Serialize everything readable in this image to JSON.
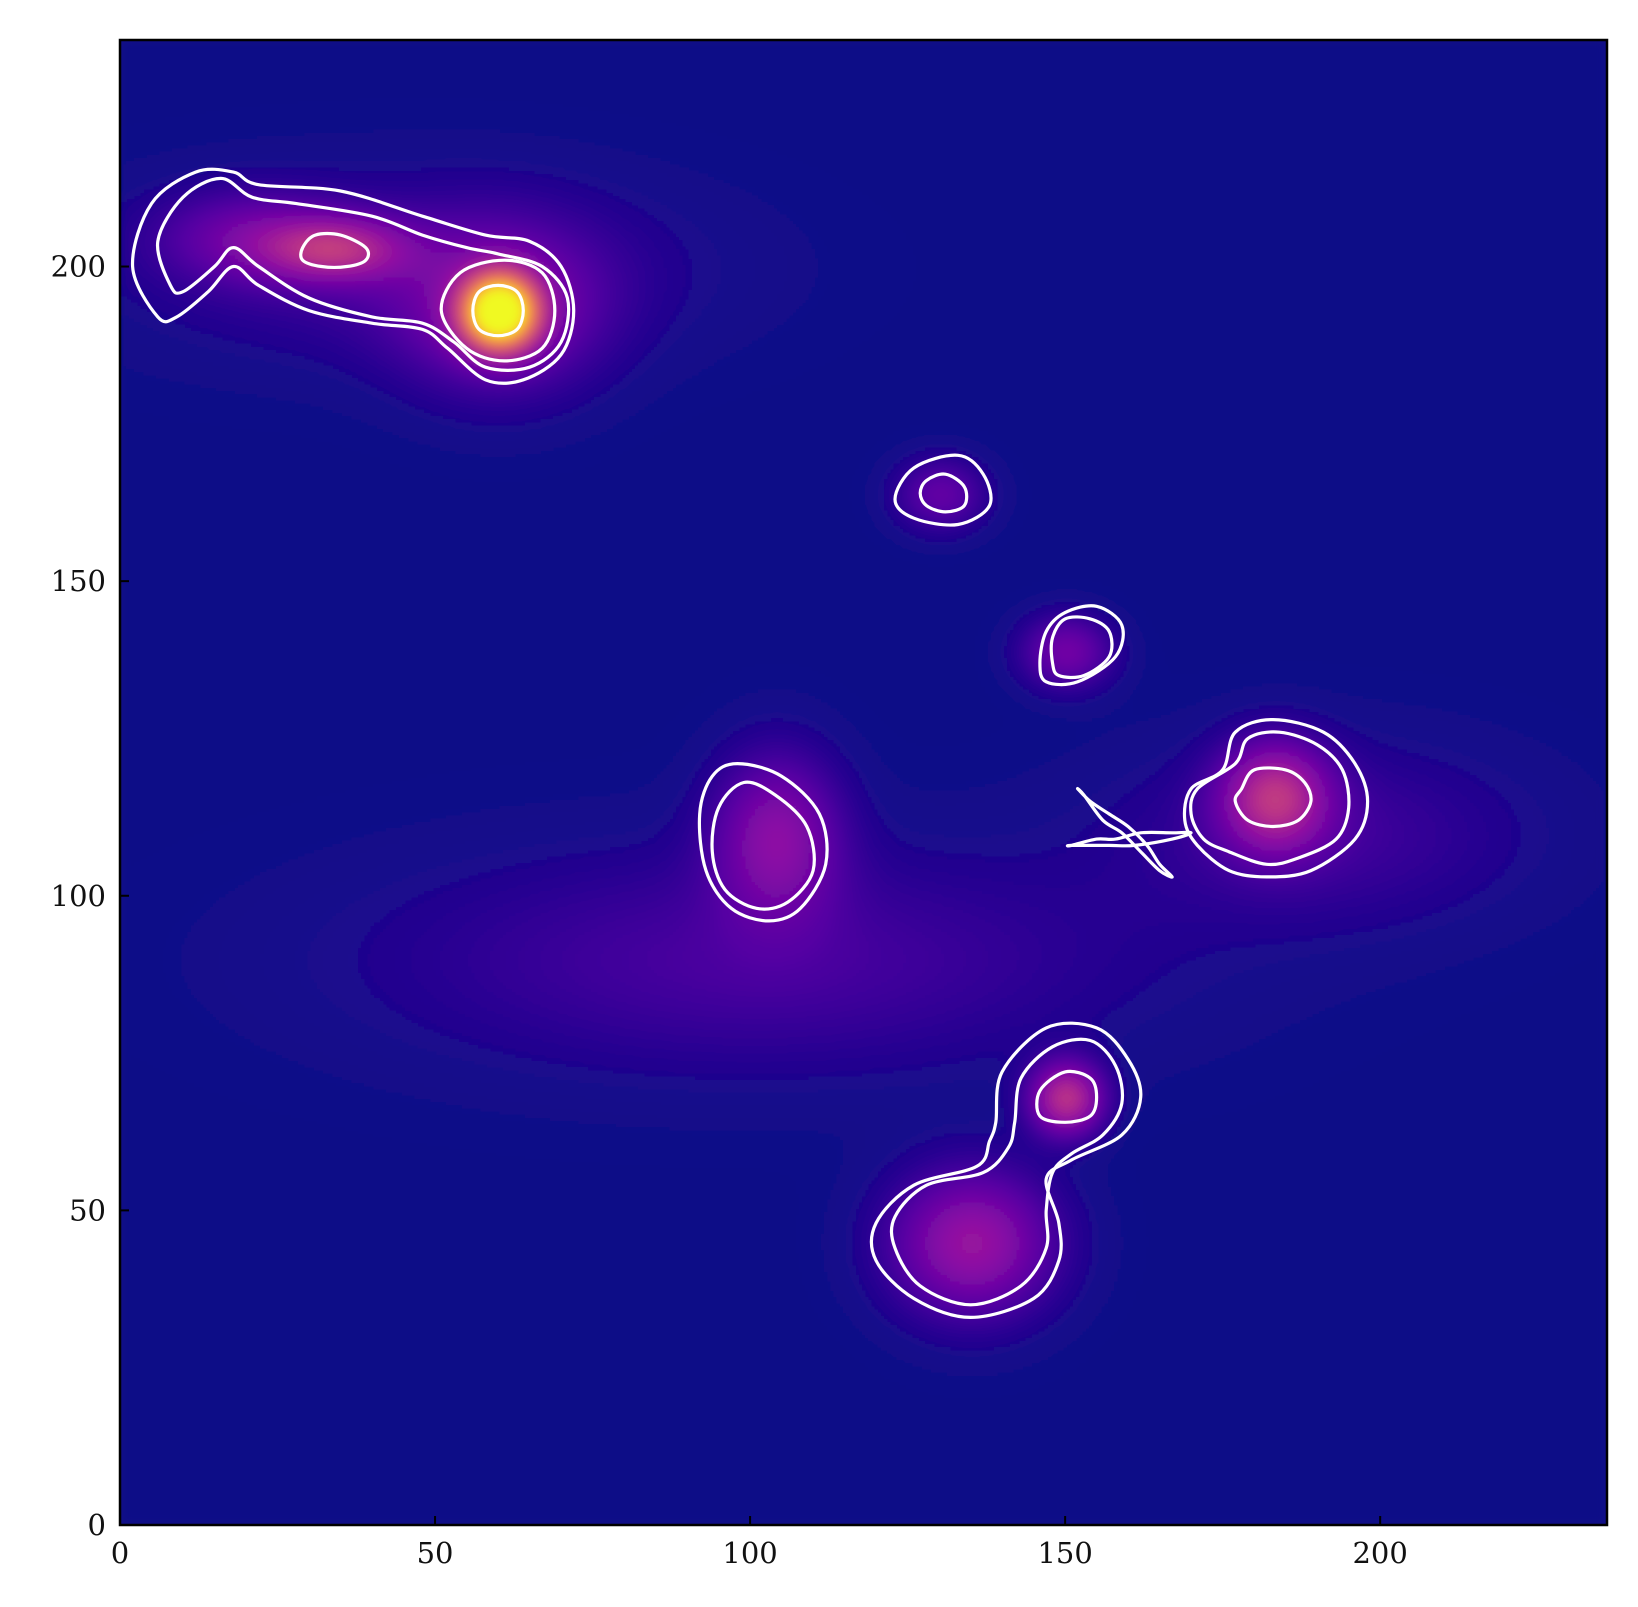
{
  "chart_data": {
    "type": "heatmap",
    "title": "",
    "xlabel": "",
    "ylabel": "",
    "xlim": [
      0,
      236
    ],
    "ylim": [
      0,
      236
    ],
    "x_ticks": [
      0,
      50,
      100,
      150,
      200
    ],
    "y_ticks": [
      0,
      50,
      100,
      150,
      200
    ],
    "x_tick_labels": [
      "0",
      "50",
      "100",
      "150",
      "200"
    ],
    "y_tick_labels": [
      "0",
      "50",
      "100",
      "150",
      "200"
    ],
    "colormap": "plasma",
    "background_color": "#0d0887",
    "contour_color": "#ffffff",
    "emission_blobs": [
      {
        "x": 60,
        "y": 193,
        "sx": 4,
        "sy": 4,
        "intensity": 1.0
      },
      {
        "x": 60,
        "y": 193,
        "sx": 11,
        "sy": 9,
        "intensity": 0.22
      },
      {
        "x": 34,
        "y": 203,
        "sx": 8,
        "sy": 3.5,
        "intensity": 0.32
      },
      {
        "x": 20,
        "y": 205,
        "sx": 10,
        "sy": 5,
        "intensity": 0.16
      },
      {
        "x": 45,
        "y": 200,
        "sx": 30,
        "sy": 10,
        "intensity": 0.1
      },
      {
        "x": 130,
        "y": 164,
        "sx": 5,
        "sy": 4,
        "intensity": 0.18
      },
      {
        "x": 150,
        "y": 139,
        "sx": 5,
        "sy": 4,
        "intensity": 0.22
      },
      {
        "x": 183,
        "y": 116,
        "sx": 6,
        "sy": 6,
        "intensity": 0.38
      },
      {
        "x": 190,
        "y": 110,
        "sx": 22,
        "sy": 10,
        "intensity": 0.1
      },
      {
        "x": 104,
        "y": 110,
        "sx": 7,
        "sy": 9,
        "intensity": 0.26
      },
      {
        "x": 150,
        "y": 68,
        "sx": 4,
        "sy": 4,
        "intensity": 0.42
      },
      {
        "x": 135,
        "y": 45,
        "sx": 9,
        "sy": 8,
        "intensity": 0.32
      },
      {
        "x": 100,
        "y": 90,
        "sx": 40,
        "sy": 12,
        "intensity": 0.12
      }
    ],
    "contours": [
      {
        "id": "top-left-outer",
        "points": [
          [
            6,
            192
          ],
          [
            2,
            200
          ],
          [
            5,
            210
          ],
          [
            12,
            215
          ],
          [
            18,
            215
          ],
          [
            22,
            213
          ],
          [
            35,
            212
          ],
          [
            48,
            208
          ],
          [
            58,
            205
          ],
          [
            65,
            204
          ],
          [
            70,
            200
          ],
          [
            72,
            193
          ],
          [
            70,
            186
          ],
          [
            64,
            182
          ],
          [
            58,
            182
          ],
          [
            52,
            187
          ],
          [
            48,
            190
          ],
          [
            40,
            191
          ],
          [
            30,
            193
          ],
          [
            22,
            197
          ],
          [
            18,
            200
          ],
          [
            14,
            196
          ],
          [
            9,
            192
          ]
        ]
      },
      {
        "id": "top-left-middle",
        "points": [
          [
            8,
            197
          ],
          [
            6,
            204
          ],
          [
            10,
            211
          ],
          [
            16,
            214
          ],
          [
            21,
            211
          ],
          [
            28,
            210
          ],
          [
            40,
            208
          ],
          [
            48,
            205
          ],
          [
            55,
            203
          ],
          [
            60,
            202
          ],
          [
            67,
            200
          ],
          [
            71,
            195
          ],
          [
            70,
            188
          ],
          [
            65,
            184
          ],
          [
            58,
            184
          ],
          [
            53,
            188
          ],
          [
            48,
            191
          ],
          [
            40,
            192
          ],
          [
            30,
            195
          ],
          [
            22,
            200
          ],
          [
            18,
            203
          ],
          [
            15,
            200
          ],
          [
            10,
            196
          ]
        ]
      },
      {
        "id": "top-left-inner-a",
        "points": [
          [
            29,
            203
          ],
          [
            31,
            205
          ],
          [
            35,
            205
          ],
          [
            39,
            203
          ],
          [
            39,
            201
          ],
          [
            36,
            200
          ],
          [
            32,
            200
          ],
          [
            29,
            201
          ]
        ]
      },
      {
        "id": "top-left-inner-b",
        "points": [
          [
            61,
            201
          ],
          [
            67,
            199
          ],
          [
            69,
            193
          ],
          [
            67,
            187
          ],
          [
            61,
            185
          ],
          [
            55,
            187
          ],
          [
            51,
            193
          ],
          [
            54,
            199
          ]
        ]
      },
      {
        "id": "top-left-core",
        "points": [
          [
            60,
            197
          ],
          [
            63,
            196
          ],
          [
            64,
            193
          ],
          [
            63,
            190
          ],
          [
            60,
            189
          ],
          [
            57,
            190
          ],
          [
            56,
            193
          ],
          [
            57,
            196
          ]
        ]
      },
      {
        "id": "mid-outer",
        "points": [
          [
            126,
            168
          ],
          [
            133,
            170
          ],
          [
            137,
            167
          ],
          [
            138,
            162
          ],
          [
            133,
            159
          ],
          [
            126,
            160
          ],
          [
            123,
            163
          ]
        ]
      },
      {
        "id": "mid-inner",
        "points": [
          [
            128,
            166
          ],
          [
            131,
            167
          ],
          [
            134,
            165
          ],
          [
            134,
            162
          ],
          [
            131,
            161
          ],
          [
            128,
            162
          ],
          [
            127,
            164
          ]
        ]
      },
      {
        "id": "right-small-outer",
        "points": [
          [
            146,
            137
          ],
          [
            147,
            134
          ],
          [
            152,
            134
          ],
          [
            158,
            138
          ],
          [
            159,
            143
          ],
          [
            155,
            146
          ],
          [
            150,
            145
          ],
          [
            147,
            142
          ]
        ]
      },
      {
        "id": "right-small-inner",
        "points": [
          [
            148,
            137
          ],
          [
            149,
            135
          ],
          [
            153,
            135
          ],
          [
            157,
            138
          ],
          [
            157,
            142
          ],
          [
            154,
            144
          ],
          [
            150,
            144
          ],
          [
            148,
            141
          ]
        ]
      },
      {
        "id": "right-large-outer",
        "points": [
          [
            175,
            120
          ],
          [
            177,
            126
          ],
          [
            183,
            128
          ],
          [
            191,
            126
          ],
          [
            196,
            121
          ],
          [
            198,
            115
          ],
          [
            196,
            109
          ],
          [
            189,
            104
          ],
          [
            182,
            103
          ],
          [
            176,
            104
          ],
          [
            171,
            108
          ],
          [
            169,
            112
          ],
          [
            170,
            117
          ]
        ]
      },
      {
        "id": "right-large-middle",
        "points": [
          [
            177,
            121
          ],
          [
            179,
            125
          ],
          [
            184,
            126
          ],
          [
            190,
            124
          ],
          [
            194,
            120
          ],
          [
            195,
            114
          ],
          [
            193,
            109
          ],
          [
            187,
            106
          ],
          [
            182,
            105
          ],
          [
            176,
            107
          ],
          [
            172,
            109
          ],
          [
            170,
            113
          ],
          [
            171,
            117
          ]
        ]
      },
      {
        "id": "right-large-inner",
        "points": [
          [
            178,
            117
          ],
          [
            180,
            120
          ],
          [
            185,
            120
          ],
          [
            188,
            118
          ],
          [
            189,
            115
          ],
          [
            187,
            112
          ],
          [
            183,
            111
          ],
          [
            179,
            112
          ],
          [
            177,
            115
          ]
        ]
      },
      {
        "id": "right-filament",
        "points": [
          [
            151,
            108
          ],
          [
            155,
            109
          ],
          [
            158,
            109
          ],
          [
            162,
            110
          ],
          [
            167,
            110
          ],
          [
            170,
            110
          ],
          [
            167,
            109
          ],
          [
            161,
            108
          ],
          [
            157,
            108
          ],
          [
            151,
            108
          ]
        ]
      },
      {
        "id": "right-filament-branch",
        "points": [
          [
            152,
            117
          ],
          [
            154,
            115
          ],
          [
            157,
            113
          ],
          [
            160,
            111
          ],
          [
            163,
            108
          ],
          [
            165,
            105
          ],
          [
            167,
            103
          ],
          [
            165,
            104
          ],
          [
            162,
            107
          ],
          [
            159,
            110
          ],
          [
            156,
            112
          ],
          [
            153,
            116
          ]
        ]
      },
      {
        "id": "center-left-outer",
        "points": [
          [
            98,
            121
          ],
          [
            105,
            119
          ],
          [
            111,
            113
          ],
          [
            112,
            105
          ],
          [
            108,
            98
          ],
          [
            103,
            96
          ],
          [
            97,
            98
          ],
          [
            93,
            104
          ],
          [
            92,
            113
          ],
          [
            94,
            119
          ]
        ]
      },
      {
        "id": "center-left-inner",
        "points": [
          [
            99,
            118
          ],
          [
            104,
            116
          ],
          [
            109,
            111
          ],
          [
            110,
            104
          ],
          [
            106,
            99
          ],
          [
            101,
            98
          ],
          [
            96,
            101
          ],
          [
            94,
            107
          ],
          [
            95,
            114
          ]
        ]
      },
      {
        "id": "bottom-outer",
        "points": [
          [
            139,
            64
          ],
          [
            140,
            72
          ],
          [
            147,
            79
          ],
          [
            155,
            79
          ],
          [
            160,
            74
          ],
          [
            162,
            68
          ],
          [
            159,
            62
          ],
          [
            151,
            58
          ],
          [
            147,
            55
          ],
          [
            149,
            48
          ],
          [
            149,
            42
          ],
          [
            145,
            36
          ],
          [
            135,
            33
          ],
          [
            126,
            36
          ],
          [
            120,
            42
          ],
          [
            120,
            48
          ],
          [
            126,
            54
          ],
          [
            136,
            57
          ],
          [
            138,
            61
          ]
        ]
      },
      {
        "id": "bottom-middle",
        "points": [
          [
            142,
            64
          ],
          [
            143,
            71
          ],
          [
            148,
            76
          ],
          [
            154,
            77
          ],
          [
            158,
            73
          ],
          [
            159,
            67
          ],
          [
            156,
            62
          ],
          [
            151,
            59
          ],
          [
            148,
            56
          ],
          [
            147,
            50
          ],
          [
            147,
            44
          ],
          [
            143,
            38
          ],
          [
            135,
            35
          ],
          [
            127,
            38
          ],
          [
            123,
            44
          ],
          [
            123,
            49
          ],
          [
            128,
            54
          ],
          [
            137,
            56
          ],
          [
            141,
            60
          ]
        ]
      },
      {
        "id": "bottom-inner",
        "points": [
          [
            150,
            72
          ],
          [
            154,
            71
          ],
          [
            155,
            68
          ],
          [
            154,
            65
          ],
          [
            150,
            64
          ],
          [
            146,
            65
          ],
          [
            146,
            69
          ]
        ]
      }
    ]
  }
}
